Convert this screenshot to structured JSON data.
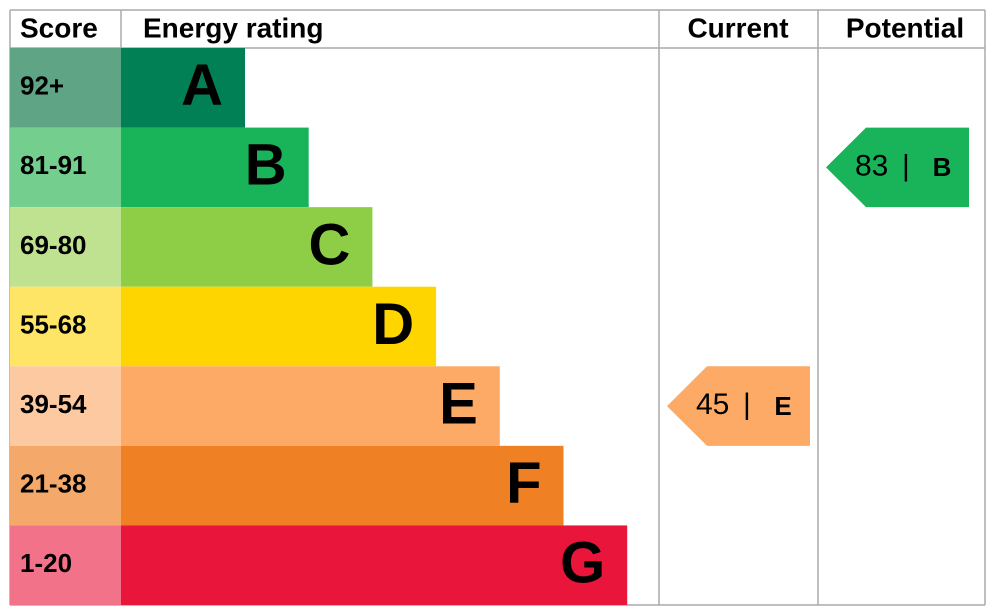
{
  "header": {
    "score": "Score",
    "rating": "Energy rating",
    "current": "Current",
    "potential": "Potential"
  },
  "bands": [
    {
      "score": "92+",
      "letter": "A",
      "color": "#008054",
      "score_color": "#5fa585"
    },
    {
      "score": "81-91",
      "letter": "B",
      "color": "#19b459",
      "score_color": "#74cf8f"
    },
    {
      "score": "69-80",
      "letter": "C",
      "color": "#8dce46",
      "score_color": "#bfe290"
    },
    {
      "score": "55-68",
      "letter": "D",
      "color": "#ffd500",
      "score_color": "#ffe566"
    },
    {
      "score": "39-54",
      "letter": "E",
      "color": "#fcaa65",
      "score_color": "#fdc9a1"
    },
    {
      "score": "21-38",
      "letter": "F",
      "color": "#ef8023",
      "score_color": "#f4a96b"
    },
    {
      "score": "1-20",
      "letter": "G",
      "color": "#e9153b",
      "score_color": "#f27389"
    }
  ],
  "current": {
    "value": 45,
    "letter": "E"
  },
  "potential": {
    "value": 83,
    "letter": "B"
  }
}
